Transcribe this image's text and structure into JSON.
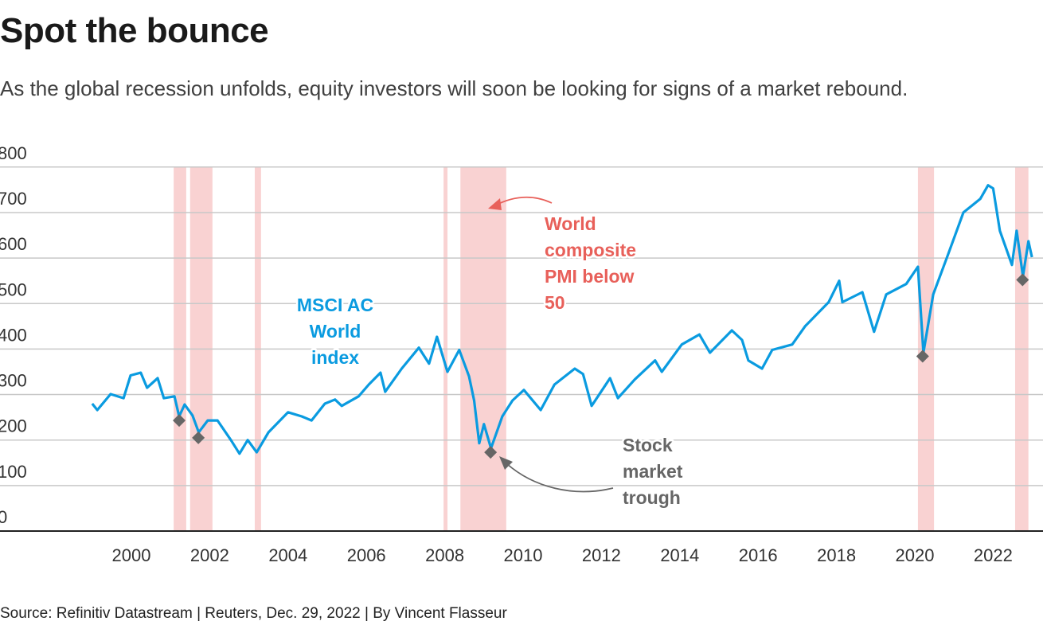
{
  "header": {
    "title": "Spot the bounce",
    "subtitle": "As the global recession unfolds, equity investors will soon be looking for signs of a market rebound."
  },
  "footer": {
    "source": "Source: Refinitiv Datastream | Reuters, Dec. 29, 2022 | By Vincent Flasseur"
  },
  "colors": {
    "line": "#0a9be0",
    "band": "#f9d2d2",
    "pmi_annotation": "#e8605a",
    "trough": "#666666",
    "grid": "#c8c8c8",
    "axis": "#222222"
  },
  "chart_data": {
    "type": "line",
    "title": "",
    "xlabel": "",
    "ylabel": "",
    "xlim": [
      1999,
      2023
    ],
    "ylim": [
      0,
      800
    ],
    "grid": true,
    "x_ticks": [
      2000,
      2002,
      2004,
      2006,
      2008,
      2010,
      2012,
      2014,
      2016,
      2018,
      2020,
      2022
    ],
    "y_ticks": [
      0,
      100,
      200,
      300,
      400,
      500,
      600,
      700,
      800
    ],
    "series": [
      {
        "name": "MSCI AC World index",
        "points": [
          [
            1999.0,
            280
          ],
          [
            1999.13,
            266
          ],
          [
            1999.47,
            301
          ],
          [
            1999.8,
            292
          ],
          [
            1999.98,
            342
          ],
          [
            2000.24,
            348
          ],
          [
            2000.4,
            315
          ],
          [
            2000.67,
            336
          ],
          [
            2000.83,
            292
          ],
          [
            2001.1,
            296
          ],
          [
            2001.22,
            252
          ],
          [
            2001.36,
            278
          ],
          [
            2001.56,
            254
          ],
          [
            2001.72,
            217
          ],
          [
            2001.95,
            243
          ],
          [
            2002.2,
            243
          ],
          [
            2002.54,
            200
          ],
          [
            2002.76,
            170
          ],
          [
            2002.97,
            200
          ],
          [
            2003.2,
            173
          ],
          [
            2003.5,
            217
          ],
          [
            2004.0,
            261
          ],
          [
            2004.35,
            252
          ],
          [
            2004.6,
            243
          ],
          [
            2004.94,
            280
          ],
          [
            2005.2,
            289
          ],
          [
            2005.37,
            275
          ],
          [
            2005.8,
            296
          ],
          [
            2006.06,
            322
          ],
          [
            2006.36,
            348
          ],
          [
            2006.48,
            306
          ],
          [
            2006.9,
            357
          ],
          [
            2007.34,
            403
          ],
          [
            2007.6,
            368
          ],
          [
            2007.8,
            427
          ],
          [
            2008.07,
            350
          ],
          [
            2008.37,
            398
          ],
          [
            2008.62,
            340
          ],
          [
            2008.75,
            287
          ],
          [
            2008.88,
            193
          ],
          [
            2009.0,
            235
          ],
          [
            2009.18,
            182
          ],
          [
            2009.47,
            252
          ],
          [
            2009.73,
            287
          ],
          [
            2010.02,
            310
          ],
          [
            2010.45,
            266
          ],
          [
            2010.8,
            322
          ],
          [
            2011.32,
            357
          ],
          [
            2011.53,
            345
          ],
          [
            2011.75,
            275
          ],
          [
            2012.22,
            336
          ],
          [
            2012.42,
            292
          ],
          [
            2012.85,
            333
          ],
          [
            2013.37,
            375
          ],
          [
            2013.54,
            350
          ],
          [
            2014.05,
            410
          ],
          [
            2014.5,
            432
          ],
          [
            2014.77,
            392
          ],
          [
            2015.33,
            441
          ],
          [
            2015.59,
            420
          ],
          [
            2015.75,
            375
          ],
          [
            2016.1,
            357
          ],
          [
            2016.36,
            398
          ],
          [
            2016.87,
            410
          ],
          [
            2017.2,
            450
          ],
          [
            2017.8,
            503
          ],
          [
            2018.07,
            550
          ],
          [
            2018.15,
            503
          ],
          [
            2018.66,
            525
          ],
          [
            2018.96,
            438
          ],
          [
            2019.27,
            520
          ],
          [
            2019.78,
            543
          ],
          [
            2020.08,
            581
          ],
          [
            2020.22,
            392
          ],
          [
            2020.47,
            520
          ],
          [
            2020.85,
            608
          ],
          [
            2021.24,
            700
          ],
          [
            2021.67,
            730
          ],
          [
            2021.87,
            760
          ],
          [
            2022.0,
            753
          ],
          [
            2022.17,
            660
          ],
          [
            2022.48,
            585
          ],
          [
            2022.6,
            660
          ],
          [
            2022.76,
            560
          ],
          [
            2022.9,
            637
          ],
          [
            2022.99,
            602
          ]
        ]
      }
    ],
    "shaded_periods": [
      [
        2001.08,
        2001.4
      ],
      [
        2001.5,
        2002.07
      ],
      [
        2003.15,
        2003.31
      ],
      [
        2007.97,
        2008.07
      ],
      [
        2008.4,
        2009.57
      ],
      [
        2020.08,
        2020.49
      ],
      [
        2022.56,
        2022.9
      ]
    ],
    "troughs": [
      [
        2001.22,
        243
      ],
      [
        2001.71,
        205
      ],
      [
        2009.17,
        173
      ],
      [
        2020.2,
        384
      ],
      [
        2022.75,
        552
      ]
    ],
    "annotations": {
      "series_label": [
        "MSCI AC",
        "World",
        "index"
      ],
      "pmi_label": [
        "World",
        "composite",
        "PMI below",
        "50"
      ],
      "trough_label": [
        "Stock",
        "market",
        "trough"
      ]
    }
  }
}
